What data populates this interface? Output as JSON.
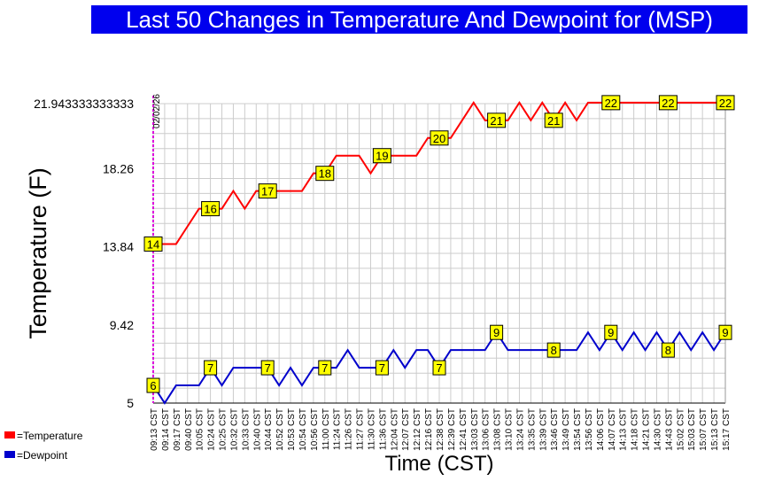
{
  "title": "Last 50 Changes in Temperature And Dewpoint for (MSP)",
  "chart_data": {
    "type": "line",
    "title": "Last 50 Changes in Temperature And Dewpoint for (MSP)",
    "xlabel": "Time (CST)",
    "ylabel": "Temperature (F)",
    "date_marker": "02/02/26",
    "yticks": [
      "5",
      "9.42",
      "13.84",
      "18.26",
      "21.943333333333"
    ],
    "ylim": [
      5,
      21.943333333333
    ],
    "grid": true,
    "legend_position": "bottom-left",
    "categories": [
      "09:13 CST",
      "09:14 CST",
      "09:17 CST",
      "09:40 CST",
      "10:05 CST",
      "10:24 CST",
      "10:25 CST",
      "10:32 CST",
      "10:33 CST",
      "10:40 CST",
      "10:44 CST",
      "10:52 CST",
      "10:53 CST",
      "10:54 CST",
      "10:56 CST",
      "11:00 CST",
      "11:24 CST",
      "11:26 CST",
      "11:27 CST",
      "11:30 CST",
      "11:36 CST",
      "12:04 CST",
      "12:07 CST",
      "12:12 CST",
      "12:16 CST",
      "12:38 CST",
      "12:39 CST",
      "12:41 CST",
      "13:03 CST",
      "13:06 CST",
      "13:08 CST",
      "13:10 CST",
      "13:24 CST",
      "13:35 CST",
      "13:39 CST",
      "13:46 CST",
      "13:49 CST",
      "13:54 CST",
      "13:56 CST",
      "14:06 CST",
      "14:07 CST",
      "14:13 CST",
      "14:18 CST",
      "14:21 CST",
      "14:30 CST",
      "14:43 CST",
      "15:02 CST",
      "15:03 CST",
      "15:07 CST",
      "15:13 CST",
      "15:17 CST"
    ],
    "series": [
      {
        "name": "Temperature",
        "color": "#ff0000",
        "values": [
          14,
          14,
          14,
          15,
          16,
          16,
          16,
          17,
          16,
          17,
          17,
          17,
          17,
          17,
          18,
          18,
          19,
          19,
          19,
          18,
          19,
          19,
          19,
          19,
          20,
          20,
          20,
          21,
          22,
          21,
          21,
          21,
          22,
          21,
          22,
          21,
          22,
          21,
          22,
          22,
          22,
          22,
          22,
          22,
          22,
          22,
          22,
          22,
          22,
          22,
          22
        ],
        "labels": [
          {
            "index": 0,
            "text": "14"
          },
          {
            "index": 5,
            "text": "16"
          },
          {
            "index": 10,
            "text": "17"
          },
          {
            "index": 15,
            "text": "18"
          },
          {
            "index": 20,
            "text": "19"
          },
          {
            "index": 25,
            "text": "20"
          },
          {
            "index": 30,
            "text": "21"
          },
          {
            "index": 35,
            "text": "21"
          },
          {
            "index": 40,
            "text": "22"
          },
          {
            "index": 45,
            "text": "22"
          },
          {
            "index": 50,
            "text": "22"
          }
        ]
      },
      {
        "name": "Dewpoint",
        "color": "#0000cc",
        "values": [
          6,
          5,
          6,
          6,
          6,
          7,
          6,
          7,
          7,
          7,
          7,
          6,
          7,
          6,
          7,
          7,
          7,
          8,
          7,
          7,
          7,
          8,
          7,
          8,
          8,
          7,
          8,
          8,
          8,
          8,
          9,
          8,
          8,
          8,
          8,
          8,
          8,
          8,
          9,
          8,
          9,
          8,
          9,
          8,
          9,
          8,
          9,
          8,
          9,
          8,
          9
        ],
        "labels": [
          {
            "index": 0,
            "text": "6"
          },
          {
            "index": 5,
            "text": "7"
          },
          {
            "index": 10,
            "text": "7"
          },
          {
            "index": 15,
            "text": "7"
          },
          {
            "index": 20,
            "text": "7"
          },
          {
            "index": 25,
            "text": "7"
          },
          {
            "index": 30,
            "text": "9"
          },
          {
            "index": 35,
            "text": "8"
          },
          {
            "index": 40,
            "text": "9"
          },
          {
            "index": 45,
            "text": "8"
          },
          {
            "index": 50,
            "text": "9"
          }
        ]
      }
    ],
    "legend": [
      {
        "label": "=Temperature",
        "color": "#ff0000"
      },
      {
        "label": "=Dewpoint",
        "color": "#0000cc"
      }
    ]
  }
}
